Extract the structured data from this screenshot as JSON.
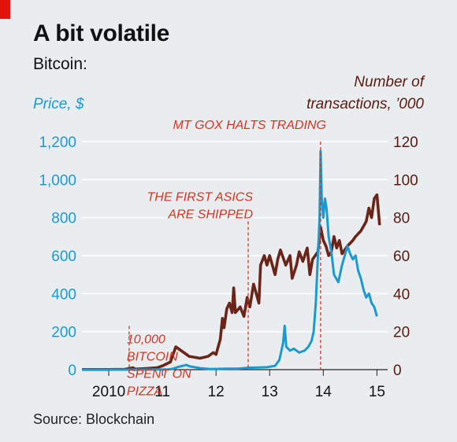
{
  "title": "A bit volatile",
  "subtitle": "Bitcoin:",
  "source": "Source: Blockchain",
  "colors": {
    "price": "#1a9ad0",
    "transactions": "#6b2418",
    "annotation": "#d63420",
    "grid": "#ffffff",
    "background": "#e9edf0",
    "brand": "#e3120b"
  },
  "chart_data": {
    "type": "line",
    "y_left": {
      "label": "Price, $",
      "range": [
        0,
        1200
      ],
      "ticks": [
        0,
        200,
        400,
        600,
        800,
        "1,000",
        "1,200"
      ]
    },
    "y_right": {
      "label": [
        "Number of",
        "transactions, ’000"
      ],
      "range": [
        0,
        120
      ],
      "ticks": [
        0,
        20,
        40,
        60,
        80,
        100,
        120
      ]
    },
    "x": {
      "range": [
        2009.5,
        2015.2
      ],
      "ticks": [
        {
          "value": 2010,
          "label": "2010"
        },
        {
          "value": 2011,
          "label": "11"
        },
        {
          "value": 2012,
          "label": "12"
        },
        {
          "value": 2013,
          "label": "13"
        },
        {
          "value": 2014,
          "label": "14"
        },
        {
          "value": 2015,
          "label": "15"
        }
      ]
    },
    "grid": true,
    "series": [
      {
        "axis": "left",
        "color": "#1a9ad0",
        "points": [
          [
            2009.5,
            0
          ],
          [
            2010.0,
            0
          ],
          [
            2010.4,
            0
          ],
          [
            2010.55,
            0
          ],
          [
            2010.8,
            0.3
          ],
          [
            2011.1,
            1
          ],
          [
            2011.2,
            5
          ],
          [
            2011.3,
            15
          ],
          [
            2011.45,
            25
          ],
          [
            2011.5,
            18
          ],
          [
            2011.7,
            8
          ],
          [
            2011.9,
            3
          ],
          [
            2012.2,
            5
          ],
          [
            2012.4,
            5
          ],
          [
            2012.6,
            10
          ],
          [
            2012.8,
            11
          ],
          [
            2012.95,
            13
          ],
          [
            2013.1,
            20
          ],
          [
            2013.18,
            50
          ],
          [
            2013.25,
            140
          ],
          [
            2013.28,
            230
          ],
          [
            2013.31,
            120
          ],
          [
            2013.38,
            100
          ],
          [
            2013.45,
            110
          ],
          [
            2013.55,
            90
          ],
          [
            2013.65,
            100
          ],
          [
            2013.72,
            120
          ],
          [
            2013.78,
            150
          ],
          [
            2013.82,
            200
          ],
          [
            2013.86,
            350
          ],
          [
            2013.9,
            600
          ],
          [
            2013.93,
            800
          ],
          [
            2013.95,
            1150
          ],
          [
            2013.97,
            900
          ],
          [
            2014.0,
            800
          ],
          [
            2014.03,
            900
          ],
          [
            2014.06,
            850
          ],
          [
            2014.1,
            700
          ],
          [
            2014.15,
            620
          ],
          [
            2014.2,
            500
          ],
          [
            2014.28,
            460
          ],
          [
            2014.35,
            550
          ],
          [
            2014.42,
            620
          ],
          [
            2014.45,
            650
          ],
          [
            2014.5,
            610
          ],
          [
            2014.55,
            580
          ],
          [
            2014.6,
            600
          ],
          [
            2014.65,
            520
          ],
          [
            2014.7,
            480
          ],
          [
            2014.75,
            420
          ],
          [
            2014.8,
            380
          ],
          [
            2014.85,
            400
          ],
          [
            2014.9,
            350
          ],
          [
            2014.95,
            330
          ],
          [
            2015.0,
            280
          ]
        ]
      },
      {
        "axis": "right",
        "color": "#6b2418",
        "points": [
          [
            2009.5,
            0.1
          ],
          [
            2010.0,
            0.1
          ],
          [
            2010.3,
            0.2
          ],
          [
            2010.45,
            1
          ],
          [
            2010.5,
            0.3
          ],
          [
            2010.7,
            0.6
          ],
          [
            2010.9,
            1
          ],
          [
            2011.0,
            2
          ],
          [
            2011.15,
            4
          ],
          [
            2011.25,
            12
          ],
          [
            2011.3,
            11
          ],
          [
            2011.5,
            7
          ],
          [
            2011.7,
            6
          ],
          [
            2011.85,
            7
          ],
          [
            2011.95,
            9
          ],
          [
            2012.0,
            8
          ],
          [
            2012.08,
            16
          ],
          [
            2012.12,
            27
          ],
          [
            2012.15,
            22
          ],
          [
            2012.2,
            32
          ],
          [
            2012.25,
            35
          ],
          [
            2012.3,
            30
          ],
          [
            2012.33,
            43
          ],
          [
            2012.36,
            30
          ],
          [
            2012.45,
            33
          ],
          [
            2012.52,
            28
          ],
          [
            2012.58,
            38
          ],
          [
            2012.63,
            33
          ],
          [
            2012.7,
            45
          ],
          [
            2012.75,
            40
          ],
          [
            2012.8,
            35
          ],
          [
            2012.83,
            55
          ],
          [
            2012.9,
            60
          ],
          [
            2012.95,
            55
          ],
          [
            2013.0,
            60
          ],
          [
            2013.1,
            50
          ],
          [
            2013.15,
            58
          ],
          [
            2013.2,
            63
          ],
          [
            2013.3,
            55
          ],
          [
            2013.38,
            60
          ],
          [
            2013.42,
            48
          ],
          [
            2013.5,
            55
          ],
          [
            2013.55,
            62
          ],
          [
            2013.62,
            57
          ],
          [
            2013.7,
            64
          ],
          [
            2013.75,
            50
          ],
          [
            2013.8,
            58
          ],
          [
            2013.9,
            62
          ],
          [
            2013.95,
            75
          ],
          [
            2014.0,
            68
          ],
          [
            2014.05,
            65
          ],
          [
            2014.1,
            60
          ],
          [
            2014.15,
            62
          ],
          [
            2014.2,
            70
          ],
          [
            2014.25,
            64
          ],
          [
            2014.3,
            68
          ],
          [
            2014.35,
            61
          ],
          [
            2014.45,
            65
          ],
          [
            2014.55,
            68
          ],
          [
            2014.6,
            70
          ],
          [
            2014.7,
            73
          ],
          [
            2014.8,
            78
          ],
          [
            2014.85,
            85
          ],
          [
            2014.9,
            80
          ],
          [
            2014.95,
            90
          ],
          [
            2015.0,
            92
          ],
          [
            2015.05,
            76
          ]
        ]
      }
    ],
    "annotations": [
      {
        "x": 2010.38,
        "y_left": 230,
        "lines": [
          "10,000",
          "BITCOIN",
          "SPENT ON",
          "PIZZA"
        ]
      },
      {
        "x": 2012.6,
        "y_left": 780,
        "lines": [
          "THE FIRST ASICS",
          "ARE SHIPPED"
        ]
      },
      {
        "x": 2013.95,
        "y_left": 1200,
        "lines": [
          "MT GOX HALTS TRADING"
        ]
      }
    ]
  }
}
